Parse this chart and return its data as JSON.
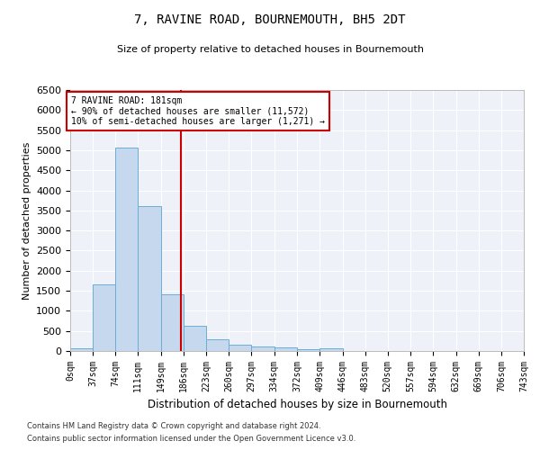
{
  "title": "7, RAVINE ROAD, BOURNEMOUTH, BH5 2DT",
  "subtitle": "Size of property relative to detached houses in Bournemouth",
  "xlabel": "Distribution of detached houses by size in Bournemouth",
  "ylabel": "Number of detached properties",
  "footer_line1": "Contains HM Land Registry data © Crown copyright and database right 2024.",
  "footer_line2": "Contains public sector information licensed under the Open Government Licence v3.0.",
  "annotation_line1": "7 RAVINE ROAD: 181sqm",
  "annotation_line2": "← 90% of detached houses are smaller (11,572)",
  "annotation_line3": "10% of semi-detached houses are larger (1,271) →",
  "bar_bins": [
    0,
    37,
    74,
    111,
    149,
    186,
    223,
    260,
    297,
    334,
    372,
    409,
    446,
    483,
    520,
    557,
    594,
    632,
    669,
    706,
    743
  ],
  "bar_heights": [
    75,
    1650,
    5060,
    3600,
    1420,
    620,
    295,
    155,
    110,
    80,
    55,
    60,
    0,
    0,
    0,
    0,
    0,
    0,
    0,
    0
  ],
  "bar_color": "#c5d8ed",
  "bar_edge_color": "#6baed6",
  "vline_color": "#cc0000",
  "vline_x": 181,
  "ylim": [
    0,
    6500
  ],
  "xlim": [
    0,
    743
  ],
  "annotation_box_color": "#cc0000",
  "background_color": "#eef2f8",
  "grid_color": "#ffffff",
  "fig_background": "#ffffff",
  "tick_labels": [
    "0sqm",
    "37sqm",
    "74sqm",
    "111sqm",
    "149sqm",
    "186sqm",
    "223sqm",
    "260sqm",
    "297sqm",
    "334sqm",
    "372sqm",
    "409sqm",
    "446sqm",
    "483sqm",
    "520sqm",
    "557sqm",
    "594sqm",
    "632sqm",
    "669sqm",
    "706sqm",
    "743sqm"
  ],
  "yticks": [
    0,
    500,
    1000,
    1500,
    2000,
    2500,
    3000,
    3500,
    4000,
    4500,
    5000,
    5500,
    6000,
    6500
  ]
}
